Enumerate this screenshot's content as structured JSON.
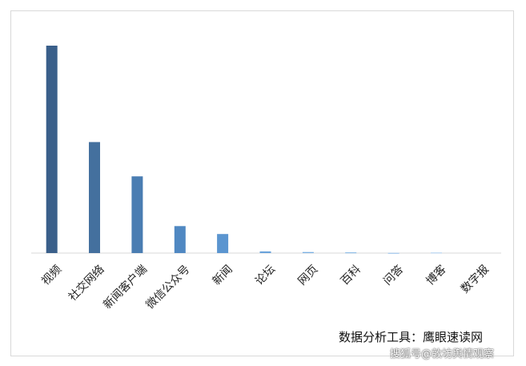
{
  "chart_data": {
    "type": "bar",
    "title": "",
    "xlabel": "",
    "ylabel": "",
    "categories": [
      "视频",
      "社交网络",
      "新闻客户端",
      "微信公众号",
      "新闻",
      "论坛",
      "网页",
      "百科",
      "问答",
      "博客",
      "数字报"
    ],
    "values": [
      1000,
      535,
      370,
      130,
      92,
      8,
      5,
      4,
      1,
      3,
      0
    ],
    "ylim": [
      0,
      1000
    ],
    "grid": false,
    "legend": "none",
    "colors": [
      "#3a5f8a",
      "#44709e",
      "#4a7db2",
      "#5088c2",
      "#5b95d0",
      "#6aa3db",
      "#7ab0e2",
      "#8fbde7",
      "#a3c9ec",
      "#b8d5f0",
      "#cce0f4"
    ]
  },
  "footer": {
    "tool_label": "数据分析工具：鹰眼速读网",
    "watermark": "搜狐号@敦坊舆情观察"
  }
}
